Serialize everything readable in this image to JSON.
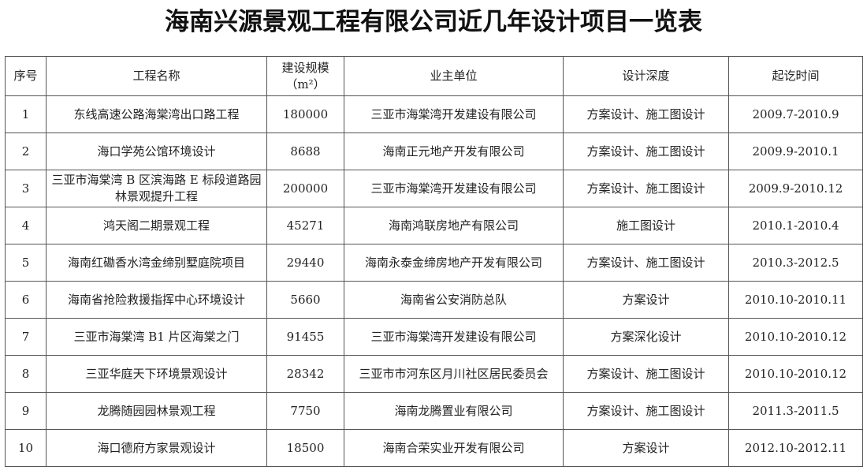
{
  "title": "海南兴源景观工程有限公司近几年设计项目一览表",
  "headers": [
    "序号",
    "工程名称",
    "建设规模（m²）",
    "业主单位",
    "设计深度",
    "起讫时间"
  ],
  "header_scale_line1": "建设规模",
  "header_scale_line2": "（m²）",
  "rows": [
    {
      "no": "1",
      "name": "东线高速公路海棠湾出口路工程",
      "scale": "180000",
      "owner": "三亚市海棠湾开发建设有限公司",
      "depth": "方案设计、施工图设计",
      "period": "2009.7-2010.9"
    },
    {
      "no": "2",
      "name": "海口学苑公馆环境设计",
      "scale": "8688",
      "owner": "海南正元地产开发有限公司",
      "depth": "方案设计、施工图设计",
      "period": "2009.9-2010.1"
    },
    {
      "no": "3",
      "name": "三亚市海棠湾 B 区滨海路 E 标段道路园林景观提升工程",
      "scale": "200000",
      "owner": "三亚市海棠湾开发建设有限公司",
      "depth": "方案设计、施工图设计",
      "period": "2009.9-2010.12"
    },
    {
      "no": "4",
      "name": "鸿天阁二期景观工程",
      "scale": "45271",
      "owner": "海南鸿联房地产有限公司",
      "depth": "施工图设计",
      "period": "2010.1-2010.4"
    },
    {
      "no": "5",
      "name": "海南红磡香水湾金缔别墅庭院项目",
      "scale": "29440",
      "owner": "海南永泰金缔房地产开发有限公司",
      "depth": "方案设计、施工图设计",
      "period": "2010.3-2012.5"
    },
    {
      "no": "6",
      "name": "海南省抢险救援指挥中心环境设计",
      "scale": "5660",
      "owner": "海南省公安消防总队",
      "depth": "方案设计",
      "period": "2010.10-2010.11"
    },
    {
      "no": "7",
      "name": "三亚市海棠湾 B1 片区海棠之门",
      "scale": "91455",
      "owner": "三亚市海棠湾开发建设有限公司",
      "depth": "方案深化设计",
      "period": "2010.10-2010.12"
    },
    {
      "no": "8",
      "name": "三亚华庭天下环境景观设计",
      "scale": "28342",
      "owner": "三亚市市河东区月川社区居民委员会",
      "depth": "方案设计、施工图设计",
      "period": "2010.10-2010.12"
    },
    {
      "no": "9",
      "name": "龙腾随园园林景观工程",
      "scale": "7750",
      "owner": "海南龙腾置业有限公司",
      "depth": "方案设计、施工图设计",
      "period": "2011.3-2011.5"
    },
    {
      "no": "10",
      "name": "海口德府方家景观设计",
      "scale": "18500",
      "owner": "海南合荣实业开发有限公司",
      "depth": "方案设计",
      "period": "2012.10-2012.11"
    }
  ]
}
